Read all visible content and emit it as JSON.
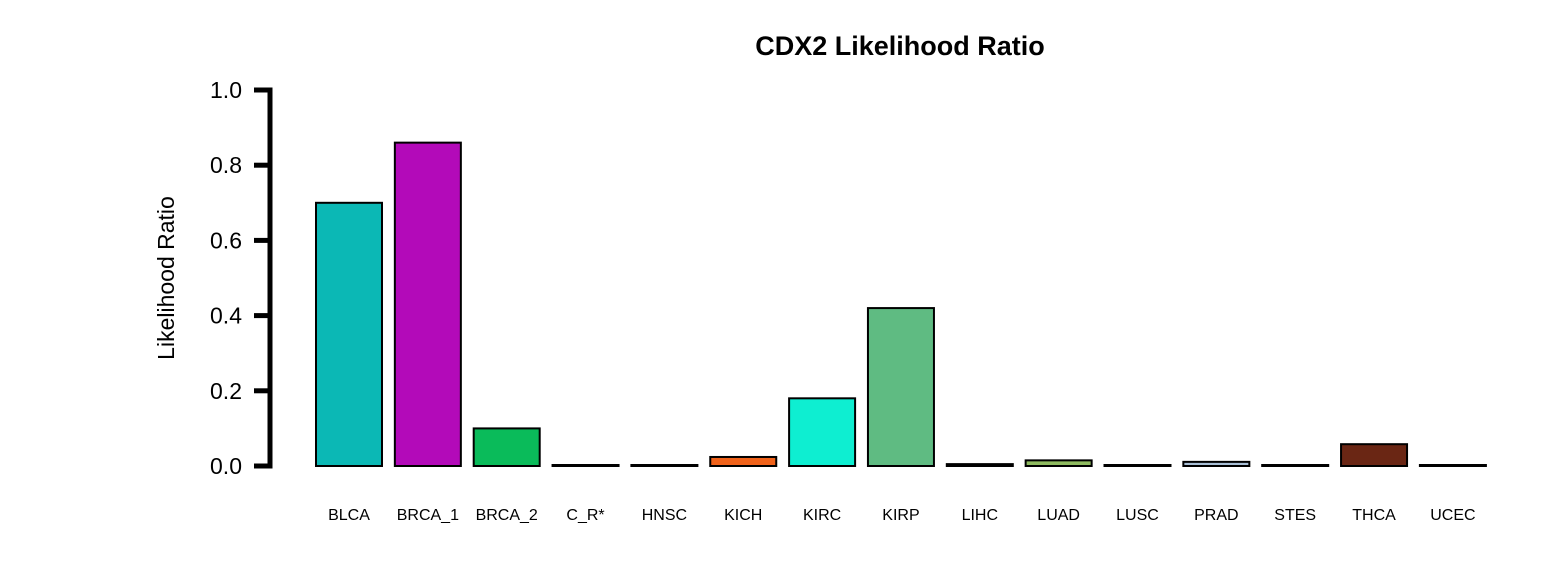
{
  "chart_data": {
    "type": "bar",
    "title": "CDX2 Likelihood Ratio",
    "xlabel": "",
    "ylabel": "Likelihood Ratio",
    "ylim": [
      0,
      1.0
    ],
    "yticks": [
      "0.0",
      "0.2",
      "0.4",
      "0.6",
      "0.8",
      "1.0"
    ],
    "grid": false,
    "categories": [
      "BLCA",
      "BRCA_1",
      "BRCA_2",
      "C_R*",
      "HNSC",
      "KICH",
      "KIRC",
      "KIRP",
      "LIHC",
      "LUAD",
      "LUSC",
      "PRAD",
      "STES",
      "THCA",
      "UCEC"
    ],
    "values": [
      0.7,
      0.86,
      0.1,
      0.0,
      0.0,
      0.024,
      0.18,
      0.42,
      0.005,
      0.015,
      0.0,
      0.011,
      0.0,
      0.058,
      0.0
    ],
    "colors": [
      "#0bb8b5",
      "#b30ab9",
      "#0abb5a",
      "#000000",
      "#000000",
      "#f0621a",
      "#0eeed1",
      "#5fbb82",
      "#000000",
      "#8fbb60",
      "#000000",
      "#a9bfd6",
      "#000000",
      "#6a2614",
      "#000000"
    ]
  }
}
